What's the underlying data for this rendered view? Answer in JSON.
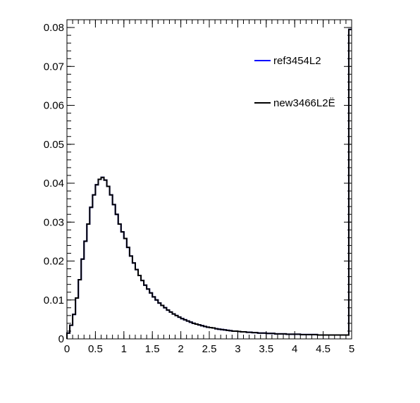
{
  "chart_data": {
    "type": "histogram",
    "title": "",
    "xlabel": "",
    "ylabel": "",
    "xlim": [
      0,
      5
    ],
    "ylim": [
      0,
      0.082
    ],
    "grid": false,
    "legend_placement": "top-right",
    "x_ticks": [
      "0",
      "0.5",
      "1",
      "1.5",
      "2",
      "2.5",
      "3",
      "3.5",
      "4",
      "4.5",
      "5"
    ],
    "y_ticks": [
      "0",
      "0.01",
      "0.02",
      "0.03",
      "0.04",
      "0.05",
      "0.06",
      "0.07",
      "0.08"
    ],
    "bin_width": 0.05,
    "bin_start": 0,
    "series": [
      {
        "name": "ref3454L2",
        "color": "#0000ff",
        "values": [
          0.0015,
          0.0035,
          0.0063,
          0.0105,
          0.0152,
          0.0205,
          0.0251,
          0.0295,
          0.0338,
          0.037,
          0.0396,
          0.041,
          0.0415,
          0.0408,
          0.0392,
          0.037,
          0.0345,
          0.032,
          0.0295,
          0.0275,
          0.0258,
          0.0235,
          0.0213,
          0.0195,
          0.0178,
          0.0163,
          0.015,
          0.0138,
          0.0128,
          0.0118,
          0.0108,
          0.01,
          0.0092,
          0.0086,
          0.008,
          0.0074,
          0.0069,
          0.0064,
          0.006,
          0.0056,
          0.0052,
          0.0049,
          0.0046,
          0.0043,
          0.004,
          0.0038,
          0.0036,
          0.0034,
          0.0032,
          0.003,
          0.0029,
          0.0028,
          0.0026,
          0.0025,
          0.0024,
          0.0023,
          0.0022,
          0.0021,
          0.002,
          0.002,
          0.0019,
          0.0018,
          0.0018,
          0.0017,
          0.0017,
          0.0016,
          0.0016,
          0.0015,
          0.0015,
          0.0015,
          0.0014,
          0.0014,
          0.0014,
          0.0013,
          0.0013,
          0.0013,
          0.0013,
          0.0012,
          0.0012,
          0.0012,
          0.0012,
          0.0012,
          0.0011,
          0.0011,
          0.0011,
          0.0011,
          0.0011,
          0.0011,
          0.001,
          0.001,
          0.001,
          0.001,
          0.001,
          0.001,
          0.001,
          0.001,
          0.001,
          0.001,
          0.001,
          0.0795
        ]
      },
      {
        "name": "new3466L2Ë",
        "color": "#000000",
        "values": [
          0.0015,
          0.0035,
          0.0063,
          0.0105,
          0.0152,
          0.0205,
          0.0251,
          0.0295,
          0.0338,
          0.037,
          0.0396,
          0.041,
          0.0415,
          0.0408,
          0.0392,
          0.037,
          0.0345,
          0.032,
          0.0295,
          0.0275,
          0.0258,
          0.0235,
          0.0213,
          0.0195,
          0.0178,
          0.0163,
          0.015,
          0.0138,
          0.0128,
          0.0118,
          0.0108,
          0.01,
          0.0092,
          0.0086,
          0.008,
          0.0074,
          0.0069,
          0.0064,
          0.006,
          0.0056,
          0.0052,
          0.0049,
          0.0046,
          0.0043,
          0.004,
          0.0038,
          0.0036,
          0.0034,
          0.0032,
          0.003,
          0.0029,
          0.0028,
          0.0026,
          0.0025,
          0.0024,
          0.0023,
          0.0022,
          0.0021,
          0.002,
          0.002,
          0.0019,
          0.0018,
          0.0018,
          0.0017,
          0.0017,
          0.0016,
          0.0016,
          0.0015,
          0.0015,
          0.0015,
          0.0014,
          0.0014,
          0.0014,
          0.0013,
          0.0013,
          0.0013,
          0.0013,
          0.0012,
          0.0012,
          0.0012,
          0.0012,
          0.0012,
          0.0011,
          0.0011,
          0.0011,
          0.0011,
          0.0011,
          0.0011,
          0.001,
          0.001,
          0.001,
          0.001,
          0.001,
          0.001,
          0.001,
          0.001,
          0.001,
          0.001,
          0.001,
          0.0795
        ]
      }
    ]
  }
}
